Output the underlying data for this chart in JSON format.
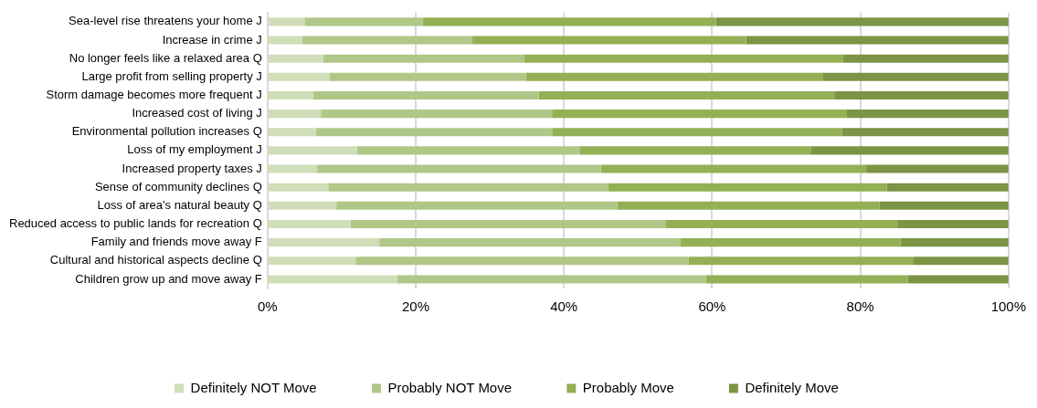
{
  "chart_data": {
    "type": "bar",
    "orientation": "horizontal",
    "stacked": true,
    "categories": [
      "Sea-level rise threatens your home J",
      "Increase in crime J",
      "No longer feels like a relaxed area Q",
      "Large profit from selling property J",
      "Storm damage becomes more frequent J",
      "Increased cost of living J",
      "Environmental pollution increases Q",
      "Loss of my employment J",
      "Increased property taxes J",
      "Sense of community declines Q",
      "Loss of area's natural beauty Q",
      "Reduced access to public lands for recreation Q",
      "Family and friends move away F",
      "Cultural and historical aspects decline Q",
      "Children grow up and move away F"
    ],
    "series": [
      {
        "name": "Definitely NOT Move",
        "color": "#d0ddb9",
        "values": [
          5,
          4.7,
          7.5,
          8.4,
          6.2,
          7.2,
          6.5,
          12.1,
          6.7,
          8.2,
          9.3,
          11.2,
          15.1,
          11.9,
          17.5
        ]
      },
      {
        "name": "Probably NOT Move",
        "color": "#afc787",
        "values": [
          16,
          22.9,
          27.1,
          26.5,
          30.4,
          31.2,
          32,
          30.1,
          38.3,
          37.8,
          37.9,
          42.5,
          40.6,
          44.9,
          41.7
        ]
      },
      {
        "name": "Probably Move",
        "color": "#93b055",
        "values": [
          39.5,
          37,
          43.1,
          40,
          39.9,
          39.8,
          39,
          31.1,
          35.8,
          37.6,
          35.4,
          31.3,
          29.7,
          30.4,
          27.2
        ]
      },
      {
        "name": "Definitely Move",
        "color": "#7b9445",
        "values": [
          39.5,
          35.4,
          22.3,
          25.1,
          23.5,
          21.8,
          22.5,
          26.7,
          19.2,
          16.4,
          17.4,
          15,
          14.6,
          12.8,
          13.6
        ]
      }
    ],
    "xlim": [
      0,
      100
    ],
    "xticks": [
      {
        "value": 0,
        "label": "0%"
      },
      {
        "value": 20,
        "label": "20%"
      },
      {
        "value": 40,
        "label": "40%"
      },
      {
        "value": 60,
        "label": "60%"
      },
      {
        "value": 80,
        "label": "80%"
      },
      {
        "value": 100,
        "label": "100%"
      }
    ],
    "grid": "x",
    "legend": "bottom"
  }
}
